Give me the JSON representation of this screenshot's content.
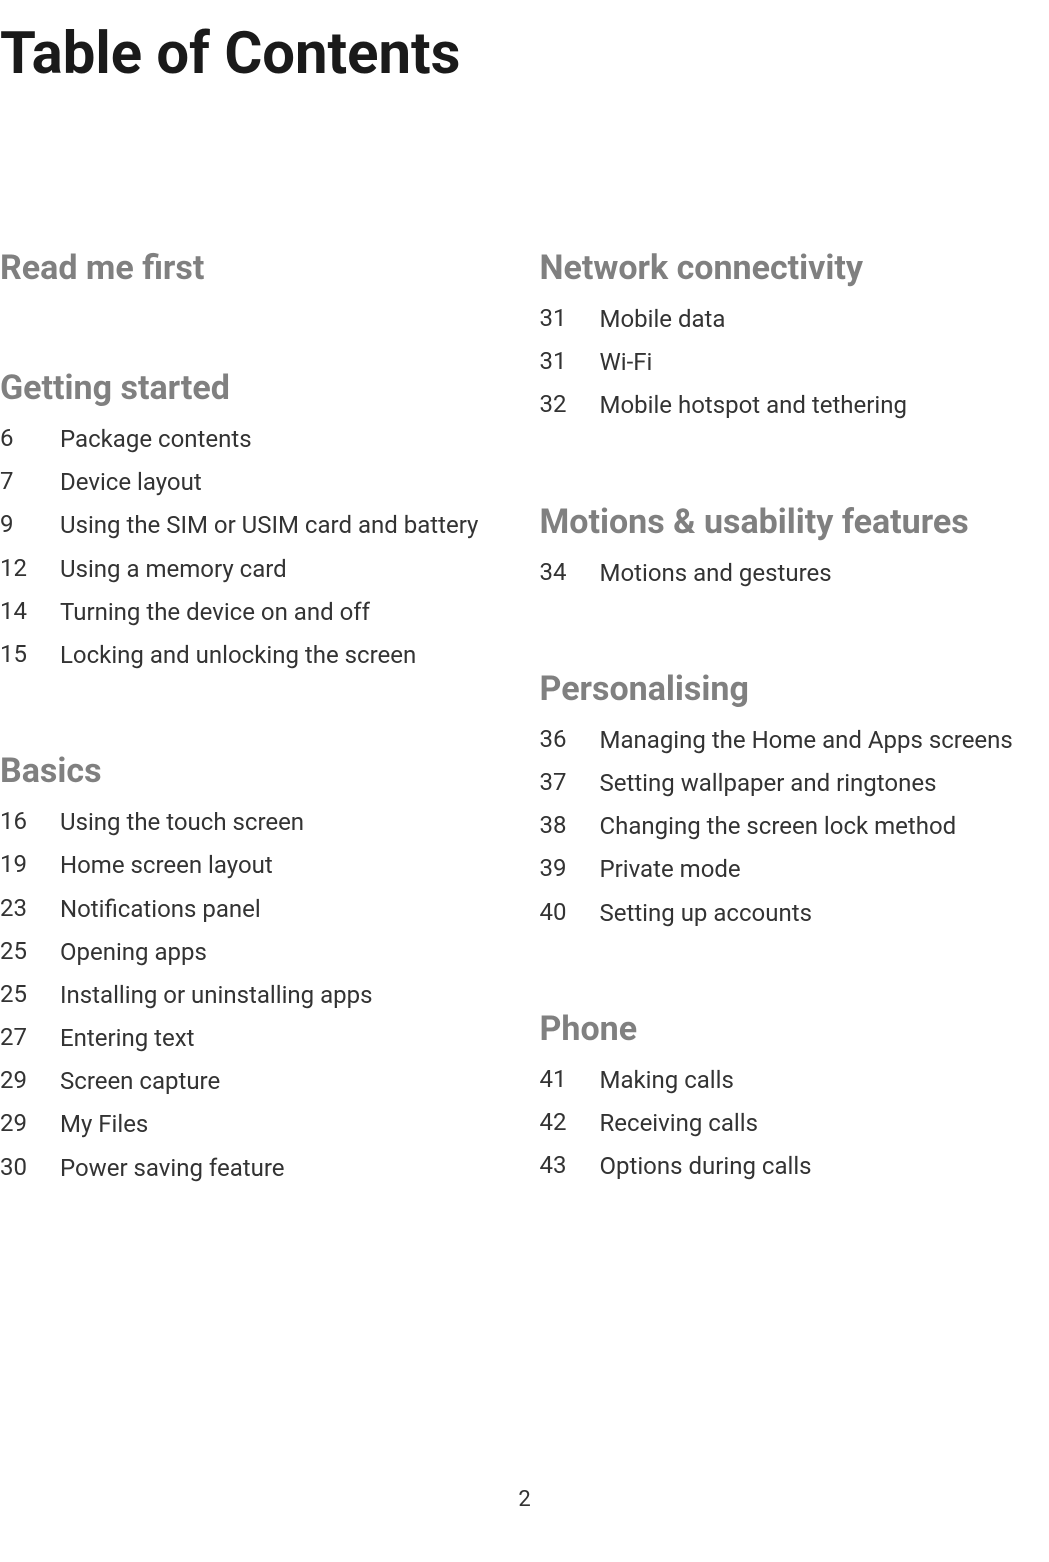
{
  "title": "Table of Contents",
  "page_number": "2",
  "colors": {
    "heading": "#808080",
    "text": "#333333",
    "title": "#1a1a1a",
    "background": "#ffffff"
  },
  "typography": {
    "title_size": 58,
    "heading_size": 34,
    "entry_size": 24,
    "title_weight": 700,
    "heading_weight": 700
  },
  "left_column": [
    {
      "heading": "Read me first",
      "entries": []
    },
    {
      "heading": "Getting started",
      "entries": [
        {
          "page": "6",
          "title": "Package contents"
        },
        {
          "page": "7",
          "title": "Device layout"
        },
        {
          "page": "9",
          "title": "Using the SIM or USIM card and battery"
        },
        {
          "page": "12",
          "title": "Using a memory card"
        },
        {
          "page": "14",
          "title": "Turning the device on and off"
        },
        {
          "page": "15",
          "title": "Locking and unlocking the screen"
        }
      ]
    },
    {
      "heading": "Basics",
      "entries": [
        {
          "page": "16",
          "title": "Using the touch screen"
        },
        {
          "page": "19",
          "title": "Home screen layout"
        },
        {
          "page": "23",
          "title": "Notifications panel"
        },
        {
          "page": "25",
          "title": "Opening apps"
        },
        {
          "page": "25",
          "title": "Installing or uninstalling apps"
        },
        {
          "page": "27",
          "title": "Entering text"
        },
        {
          "page": "29",
          "title": "Screen capture"
        },
        {
          "page": "29",
          "title": "My Files"
        },
        {
          "page": "30",
          "title": "Power saving feature"
        }
      ]
    }
  ],
  "right_column": [
    {
      "heading": "Network connectivity",
      "entries": [
        {
          "page": "31",
          "title": "Mobile data"
        },
        {
          "page": "31",
          "title": "Wi-Fi"
        },
        {
          "page": "32",
          "title": "Mobile hotspot and tethering"
        }
      ]
    },
    {
      "heading": "Motions & usability features",
      "entries": [
        {
          "page": "34",
          "title": "Motions and gestures"
        }
      ]
    },
    {
      "heading": "Personalising",
      "entries": [
        {
          "page": "36",
          "title": "Managing the Home and Apps screens"
        },
        {
          "page": "37",
          "title": "Setting wallpaper and ringtones"
        },
        {
          "page": "38",
          "title": "Changing the screen lock method"
        },
        {
          "page": "39",
          "title": "Private mode"
        },
        {
          "page": "40",
          "title": "Setting up accounts"
        }
      ]
    },
    {
      "heading": "Phone",
      "entries": [
        {
          "page": "41",
          "title": "Making calls"
        },
        {
          "page": "42",
          "title": "Receiving calls"
        },
        {
          "page": "43",
          "title": "Options during calls"
        }
      ]
    }
  ]
}
